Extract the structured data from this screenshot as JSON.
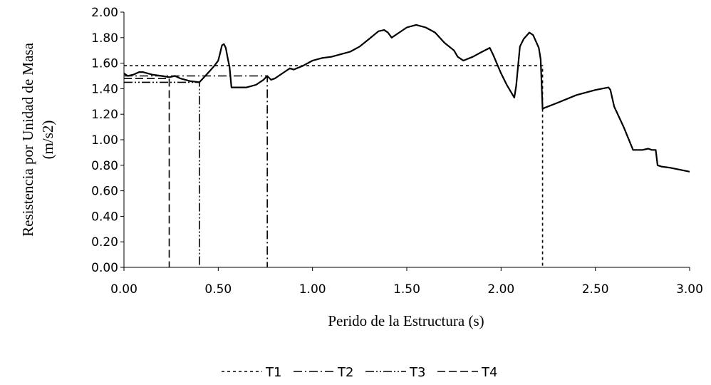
{
  "chart_data": {
    "type": "line",
    "title": "",
    "xlabel": "Perido de la Estructura (s)",
    "ylabel_lines": [
      "Resistencia por Unidad de Masa",
      "(m/s2)"
    ],
    "xlim": [
      0,
      3
    ],
    "ylim": [
      0,
      2
    ],
    "x_ticks": [
      "0.00",
      "0.50",
      "1.00",
      "1.50",
      "2.00",
      "2.50",
      "3.00"
    ],
    "y_ticks": [
      "0.00",
      "0.20",
      "0.40",
      "0.60",
      "0.80",
      "1.00",
      "1.20",
      "1.40",
      "1.60",
      "1.80",
      "2.00"
    ],
    "grid": false,
    "legend_position": "bottom",
    "spectrum": {
      "x": [
        0.0,
        0.02,
        0.05,
        0.08,
        0.1,
        0.15,
        0.2,
        0.24,
        0.27,
        0.3,
        0.35,
        0.4,
        0.45,
        0.48,
        0.5,
        0.51,
        0.52,
        0.53,
        0.54,
        0.55,
        0.56,
        0.57,
        0.6,
        0.65,
        0.7,
        0.74,
        0.76,
        0.78,
        0.8,
        0.85,
        0.88,
        0.9,
        0.95,
        1.0,
        1.05,
        1.1,
        1.15,
        1.2,
        1.25,
        1.3,
        1.35,
        1.38,
        1.4,
        1.42,
        1.45,
        1.5,
        1.55,
        1.6,
        1.65,
        1.7,
        1.75,
        1.77,
        1.8,
        1.85,
        1.9,
        1.94,
        1.96,
        2.0,
        2.03,
        2.07,
        2.08,
        2.1,
        2.12,
        2.15,
        2.17,
        2.2,
        2.21,
        2.22,
        2.23,
        2.3,
        2.4,
        2.5,
        2.57,
        2.58,
        2.6,
        2.65,
        2.7,
        2.75,
        2.78,
        2.8,
        2.82,
        2.83,
        2.85,
        2.9,
        3.0
      ],
      "y": [
        1.52,
        1.5,
        1.51,
        1.53,
        1.53,
        1.51,
        1.5,
        1.49,
        1.5,
        1.48,
        1.46,
        1.45,
        1.53,
        1.58,
        1.62,
        1.68,
        1.74,
        1.75,
        1.72,
        1.64,
        1.57,
        1.41,
        1.41,
        1.41,
        1.43,
        1.47,
        1.5,
        1.47,
        1.48,
        1.53,
        1.56,
        1.55,
        1.58,
        1.62,
        1.64,
        1.65,
        1.67,
        1.69,
        1.73,
        1.79,
        1.85,
        1.86,
        1.84,
        1.8,
        1.83,
        1.88,
        1.9,
        1.88,
        1.84,
        1.76,
        1.7,
        1.65,
        1.62,
        1.65,
        1.69,
        1.72,
        1.66,
        1.52,
        1.43,
        1.33,
        1.42,
        1.73,
        1.79,
        1.84,
        1.82,
        1.72,
        1.63,
        1.24,
        1.25,
        1.29,
        1.35,
        1.39,
        1.41,
        1.39,
        1.26,
        1.1,
        0.92,
        0.92,
        0.93,
        0.92,
        0.92,
        0.8,
        0.79,
        0.78,
        0.75
      ]
    },
    "series": [
      {
        "name": "T1",
        "period": 2.22,
        "resistance": 1.58,
        "dash": "4 4"
      },
      {
        "name": "T2",
        "period": 0.76,
        "resistance": 1.5,
        "dash": "12 4 2 4"
      },
      {
        "name": "T3",
        "period": 0.4,
        "resistance": 1.45,
        "dash": "12 3 2 3 2 3"
      },
      {
        "name": "T4",
        "period": 0.24,
        "resistance": 1.48,
        "dash": "11 5"
      }
    ]
  }
}
